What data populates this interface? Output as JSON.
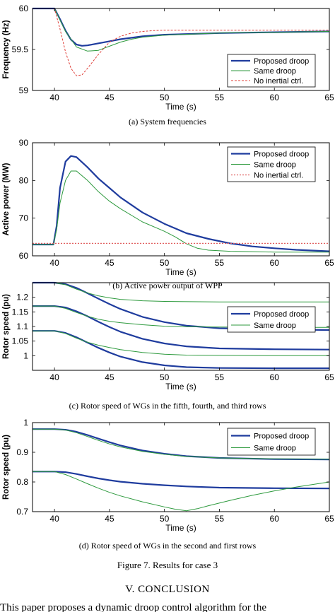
{
  "figure": {
    "caption": "Figure 7.    Results for case 3",
    "section_title": "V.    CONCLUSION",
    "body_fragment": "This paper proposes a dynamic droop control algorithm for the"
  },
  "chart_data": [
    {
      "type": "line",
      "subcaption": "(a) System frequencies",
      "xlabel": "Time (s)",
      "ylabel": "Frequency (Hz)",
      "xlim": [
        38,
        65
      ],
      "ylim": [
        59,
        60
      ],
      "xticks": [
        40,
        45,
        50,
        55,
        60,
        65
      ],
      "yticks": [
        59,
        59.5,
        60
      ],
      "grid": false,
      "legend_position": "bottom-right",
      "series": [
        {
          "name": "Proposed droop",
          "color": "#1f3c9e",
          "width": 2.2,
          "dash": "",
          "x": [
            38,
            40,
            40.5,
            41,
            41.5,
            42,
            42.5,
            43,
            44,
            45,
            46,
            48,
            50,
            55,
            60,
            65
          ],
          "y": [
            60,
            60,
            59.87,
            59.73,
            59.62,
            59.56,
            59.545,
            59.55,
            59.575,
            59.6,
            59.625,
            59.66,
            59.68,
            59.7,
            59.71,
            59.72
          ]
        },
        {
          "name": "Same droop",
          "color": "#2e9a3e",
          "width": 1,
          "dash": "",
          "x": [
            38,
            40,
            40.5,
            41,
            42,
            43,
            44,
            45,
            46,
            47,
            48,
            50,
            55,
            60,
            65
          ],
          "y": [
            60,
            60,
            59.86,
            59.72,
            59.53,
            59.48,
            59.49,
            59.54,
            59.59,
            59.625,
            59.65,
            59.675,
            59.7,
            59.71,
            59.72
          ]
        },
        {
          "name": "No inertial ctrl.",
          "color": "#e0403a",
          "width": 1,
          "dash": "3,2",
          "x": [
            38,
            40,
            40.5,
            41,
            41.5,
            42,
            42.5,
            43,
            44,
            45,
            46,
            47,
            48,
            49,
            50,
            55,
            60,
            65
          ],
          "y": [
            60,
            60,
            59.75,
            59.47,
            59.27,
            59.18,
            59.19,
            59.27,
            59.44,
            59.59,
            59.66,
            59.7,
            59.72,
            59.73,
            59.735,
            59.735,
            59.735,
            59.735
          ]
        }
      ]
    },
    {
      "type": "line",
      "subcaption": "(b) Active power output of WPP",
      "xlabel": "Time (s)",
      "ylabel": "Active power (MW)",
      "xlim": [
        38,
        65
      ],
      "ylim": [
        60,
        90
      ],
      "xticks": [
        40,
        45,
        50,
        55,
        60,
        65
      ],
      "yticks": [
        60,
        70,
        80,
        90
      ],
      "grid": false,
      "legend_position": "top-right",
      "series": [
        {
          "name": "Proposed droop",
          "color": "#1f3c9e",
          "width": 2.2,
          "dash": "",
          "x": [
            38,
            39.9,
            40.2,
            40.5,
            41,
            41.5,
            42,
            43,
            44,
            45,
            46,
            48,
            50,
            52,
            54,
            56,
            58,
            60,
            62,
            65
          ],
          "y": [
            63,
            63,
            68,
            78,
            85,
            86.5,
            86.2,
            83.5,
            80.5,
            78,
            75.5,
            71.5,
            68.5,
            66,
            64.5,
            63.3,
            62.5,
            62,
            61.6,
            61.2
          ]
        },
        {
          "name": "Same droop",
          "color": "#2e9a3e",
          "width": 1,
          "dash": "",
          "x": [
            38,
            39.9,
            40.2,
            40.5,
            41,
            41.5,
            42,
            43,
            44,
            45,
            46,
            48,
            50,
            51,
            52,
            53,
            54,
            56,
            58,
            60,
            62,
            65
          ],
          "y": [
            63,
            63,
            67,
            74,
            80,
            82.5,
            82.5,
            80,
            77,
            74.5,
            72.5,
            69,
            66.5,
            65,
            63.2,
            62,
            61.5,
            61.2,
            61.1,
            61,
            61,
            61
          ]
        },
        {
          "name": "No inertial ctrl.",
          "color": "#e06060",
          "width": 1.2,
          "dash": "2,2",
          "x": [
            38,
            40,
            45,
            50,
            55,
            60,
            65
          ],
          "y": [
            63.3,
            63.3,
            63.3,
            63.3,
            63.3,
            63.3,
            63.3
          ]
        }
      ]
    },
    {
      "type": "line",
      "subcaption": "(c) Rotor speed of WGs in the fifth, fourth, and third rows",
      "xlabel": "Time (s)",
      "ylabel": "Rotor speed (pu)",
      "xlim": [
        38,
        65
      ],
      "ylim": [
        0.95,
        1.25
      ],
      "xticks": [
        40,
        45,
        50,
        55,
        60,
        65
      ],
      "yticks": [
        1,
        1.05,
        1.1,
        1.15,
        1.2
      ],
      "grid": false,
      "legend_position": "top-right",
      "series": [
        {
          "name": "Proposed droop",
          "color": "#1f3c9e",
          "width": 2.2,
          "dash": "",
          "x": [
            38,
            40,
            41,
            42,
            43,
            44,
            45,
            46,
            48,
            50,
            52,
            55,
            60,
            65
          ],
          "y": [
            1.25,
            1.25,
            1.245,
            1.232,
            1.214,
            1.195,
            1.177,
            1.16,
            1.133,
            1.115,
            1.103,
            1.094,
            1.09,
            1.088
          ]
        },
        {
          "name": "",
          "color": "#1f3c9e",
          "width": 2.2,
          "dash": "",
          "x": [
            38,
            40,
            41,
            42,
            43,
            44,
            45,
            46,
            48,
            50,
            52,
            55,
            60,
            65
          ],
          "y": [
            1.17,
            1.17,
            1.165,
            1.152,
            1.135,
            1.116,
            1.098,
            1.082,
            1.058,
            1.042,
            1.032,
            1.025,
            1.022,
            1.021
          ]
        },
        {
          "name": "",
          "color": "#1f3c9e",
          "width": 2.2,
          "dash": "",
          "x": [
            38,
            40,
            41,
            42,
            43,
            44,
            45,
            46,
            48,
            50,
            52,
            55,
            60,
            65
          ],
          "y": [
            1.085,
            1.085,
            1.078,
            1.063,
            1.045,
            1.027,
            1.011,
            0.997,
            0.978,
            0.967,
            0.961,
            0.958,
            0.957,
            0.957
          ]
        },
        {
          "name": "Same droop",
          "color": "#2e9a3e",
          "width": 1,
          "dash": "",
          "x": [
            38,
            40,
            41,
            42,
            43,
            44,
            45,
            46,
            48,
            50,
            55,
            60,
            65
          ],
          "y": [
            1.25,
            1.25,
            1.243,
            1.228,
            1.215,
            1.205,
            1.198,
            1.193,
            1.188,
            1.186,
            1.184,
            1.184,
            1.184
          ]
        },
        {
          "name": "",
          "color": "#2e9a3e",
          "width": 1,
          "dash": "",
          "x": [
            38,
            40,
            41,
            42,
            43,
            44,
            45,
            46,
            48,
            50,
            52,
            55,
            60,
            65
          ],
          "y": [
            1.17,
            1.17,
            1.162,
            1.148,
            1.135,
            1.125,
            1.118,
            1.113,
            1.106,
            1.101,
            1.099,
            1.098,
            1.097,
            1.097
          ]
        },
        {
          "name": "",
          "color": "#2e9a3e",
          "width": 1,
          "dash": "",
          "x": [
            38,
            40,
            41,
            42,
            43,
            44,
            45,
            46,
            48,
            50,
            52,
            55,
            60,
            65
          ],
          "y": [
            1.085,
            1.085,
            1.076,
            1.06,
            1.046,
            1.036,
            1.028,
            1.021,
            1.011,
            1.005,
            1.002,
            1.001,
            1,
            1
          ]
        }
      ]
    },
    {
      "type": "line",
      "subcaption": "(d) Rotor speed of WGs in the second and first rows",
      "xlabel": "Time (s)",
      "ylabel": "Rotor speed (pu)",
      "xlim": [
        38,
        65
      ],
      "ylim": [
        0.7,
        1
      ],
      "xticks": [
        40,
        45,
        50,
        55,
        60,
        65
      ],
      "yticks": [
        0.7,
        0.8,
        0.9,
        1
      ],
      "grid": false,
      "legend_position": "top-right",
      "series": [
        {
          "name": "Proposed droop",
          "color": "#1f3c9e",
          "width": 2.2,
          "dash": "",
          "x": [
            38,
            40,
            41,
            42,
            43,
            44,
            45,
            46,
            48,
            50,
            52,
            55,
            60,
            65
          ],
          "y": [
            0.978,
            0.978,
            0.976,
            0.969,
            0.958,
            0.946,
            0.934,
            0.923,
            0.906,
            0.895,
            0.887,
            0.881,
            0.877,
            0.876
          ]
        },
        {
          "name": "",
          "color": "#1f3c9e",
          "width": 2.2,
          "dash": "",
          "x": [
            38,
            40,
            41,
            42,
            43,
            44,
            45,
            46,
            48,
            50,
            52,
            55,
            60,
            65
          ],
          "y": [
            0.835,
            0.835,
            0.833,
            0.827,
            0.819,
            0.812,
            0.806,
            0.801,
            0.794,
            0.789,
            0.785,
            0.781,
            0.779,
            0.778
          ]
        },
        {
          "name": "Same droop",
          "color": "#2e9a3e",
          "width": 1,
          "dash": "",
          "x": [
            38,
            40,
            41,
            42,
            43,
            44,
            45,
            46,
            48,
            50,
            52,
            55,
            60,
            65
          ],
          "y": [
            0.978,
            0.978,
            0.975,
            0.966,
            0.953,
            0.94,
            0.928,
            0.918,
            0.903,
            0.893,
            0.886,
            0.881,
            0.878,
            0.877
          ]
        },
        {
          "name": "",
          "color": "#2e9a3e",
          "width": 1,
          "dash": "",
          "x": [
            38,
            40,
            41,
            42,
            43,
            44,
            45,
            46,
            48,
            50,
            51,
            52,
            53,
            54,
            56,
            58,
            60,
            62,
            65
          ],
          "y": [
            0.835,
            0.835,
            0.825,
            0.81,
            0.794,
            0.779,
            0.765,
            0.753,
            0.733,
            0.716,
            0.708,
            0.703,
            0.71,
            0.72,
            0.738,
            0.755,
            0.77,
            0.783,
            0.8
          ]
        }
      ]
    }
  ]
}
